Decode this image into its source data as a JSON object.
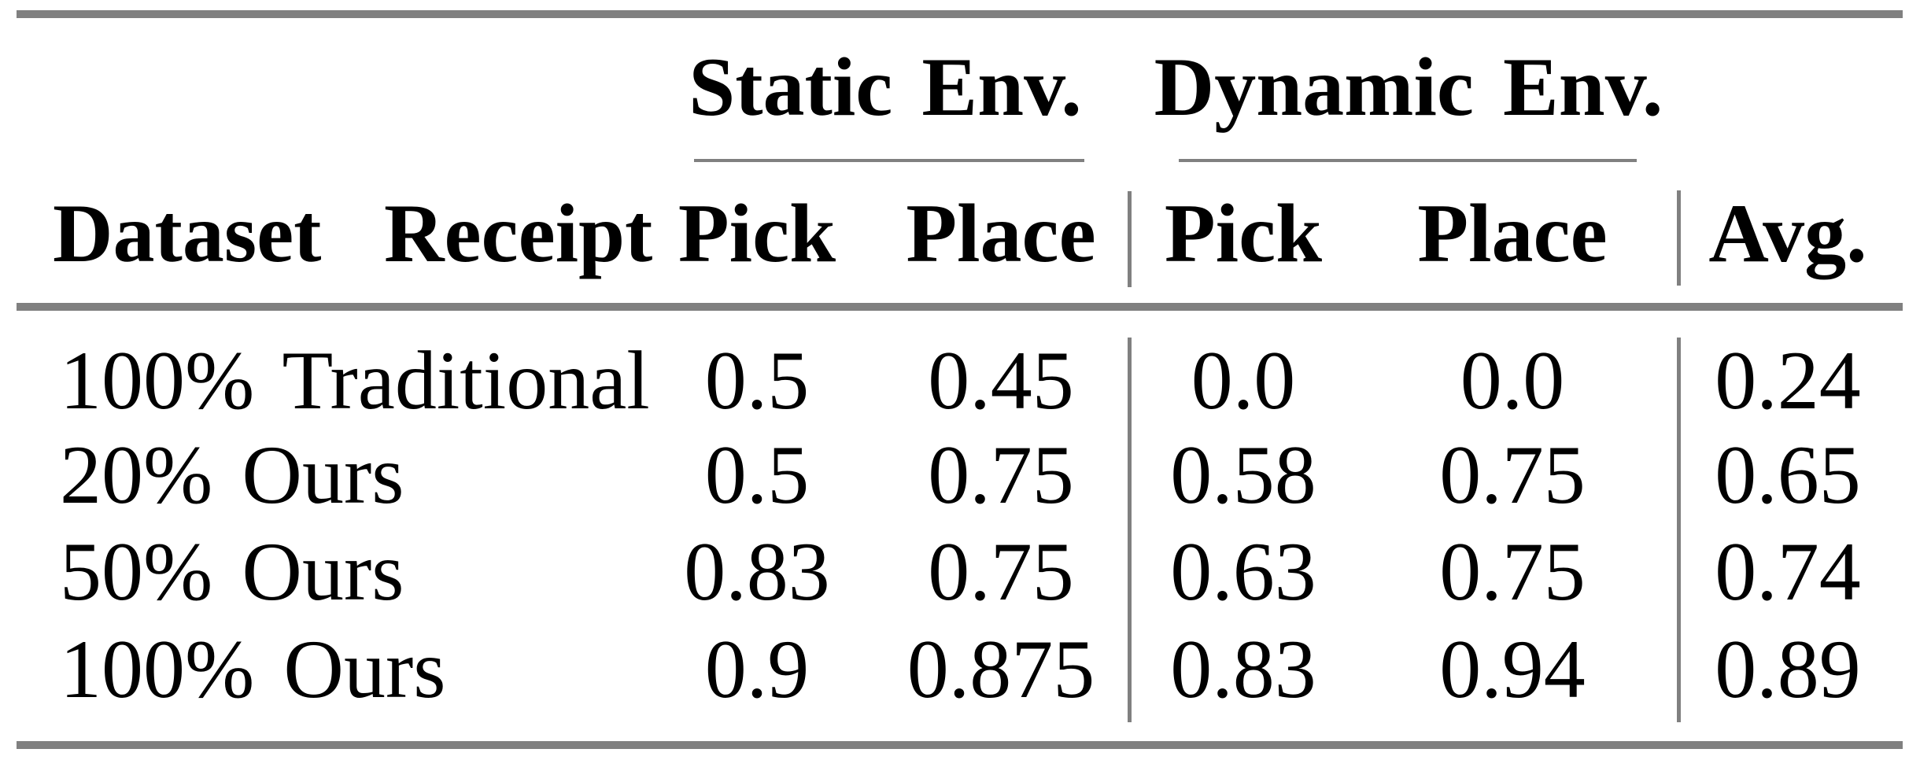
{
  "table": {
    "group_headers": {
      "static": "Static Env.",
      "dynamic": "Dynamic Env."
    },
    "column_headers": {
      "row_label": "Dataset Receipt",
      "static_pick": "Pick",
      "static_place": "Place",
      "dynamic_pick": "Pick",
      "dynamic_place": "Place",
      "avg": "Avg."
    },
    "rows": [
      {
        "label": "100% Traditional",
        "values": [
          "0.5",
          "0.45",
          "0.0",
          "0.0",
          "0.24"
        ]
      },
      {
        "label": "20% Ours",
        "values": [
          "0.5",
          "0.75",
          "0.58",
          "0.75",
          "0.65"
        ]
      },
      {
        "label": "50% Ours",
        "values": [
          "0.83",
          "0.75",
          "0.63",
          "0.75",
          "0.74"
        ]
      },
      {
        "label": "100% Ours",
        "values": [
          "0.9",
          "0.875",
          "0.83",
          "0.94",
          "0.89"
        ]
      }
    ],
    "colors": {
      "rule_gray": "#808080",
      "text": "#000000",
      "background": "#ffffff"
    }
  },
  "chart_data": {
    "type": "table",
    "column_groups": [
      "Static Env.",
      "Dynamic Env."
    ],
    "columns": [
      "Dataset Receipt",
      "Static Env. Pick",
      "Static Env. Place",
      "Dynamic Env. Pick",
      "Dynamic Env. Place",
      "Avg."
    ],
    "rows": [
      [
        "100% Traditional",
        0.5,
        0.45,
        0.0,
        0.0,
        0.24
      ],
      [
        "20% Ours",
        0.5,
        0.75,
        0.58,
        0.75,
        0.65
      ],
      [
        "50% Ours",
        0.83,
        0.75,
        0.63,
        0.75,
        0.74
      ],
      [
        "100% Ours",
        0.9,
        0.875,
        0.83,
        0.94,
        0.89
      ]
    ]
  }
}
